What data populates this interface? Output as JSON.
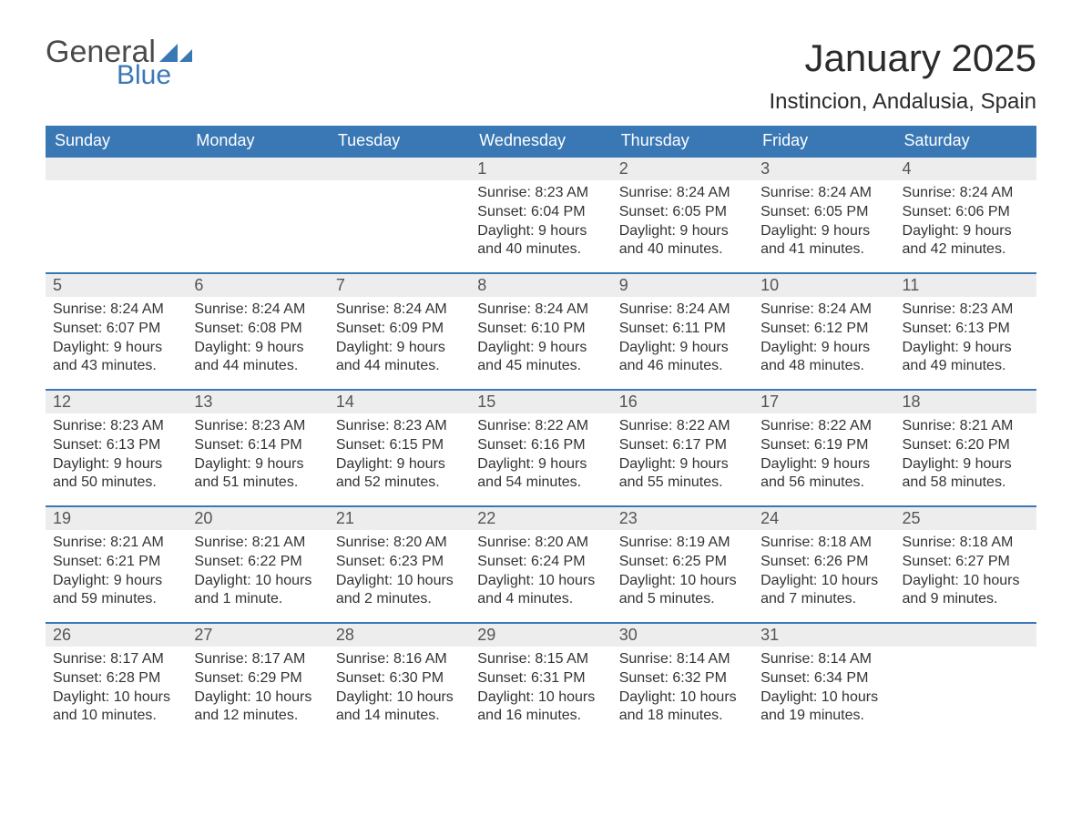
{
  "brand": {
    "part1": "General",
    "part2": "Blue",
    "logo_color": "#3a78b5",
    "text_color": "#4a4a4a"
  },
  "title": "January 2025",
  "location": "Instincion, Andalusia, Spain",
  "header_bg": "#3a78b5",
  "header_fg": "#ffffff",
  "daynum_bg": "#ededed",
  "daynum_border": "#3a78b5",
  "weekdays": [
    "Sunday",
    "Monday",
    "Tuesday",
    "Wednesday",
    "Thursday",
    "Friday",
    "Saturday"
  ],
  "weeks": [
    [
      null,
      null,
      null,
      {
        "n": "1",
        "sr": "8:23 AM",
        "ss": "6:04 PM",
        "dl": "9 hours and 40 minutes."
      },
      {
        "n": "2",
        "sr": "8:24 AM",
        "ss": "6:05 PM",
        "dl": "9 hours and 40 minutes."
      },
      {
        "n": "3",
        "sr": "8:24 AM",
        "ss": "6:05 PM",
        "dl": "9 hours and 41 minutes."
      },
      {
        "n": "4",
        "sr": "8:24 AM",
        "ss": "6:06 PM",
        "dl": "9 hours and 42 minutes."
      }
    ],
    [
      {
        "n": "5",
        "sr": "8:24 AM",
        "ss": "6:07 PM",
        "dl": "9 hours and 43 minutes."
      },
      {
        "n": "6",
        "sr": "8:24 AM",
        "ss": "6:08 PM",
        "dl": "9 hours and 44 minutes."
      },
      {
        "n": "7",
        "sr": "8:24 AM",
        "ss": "6:09 PM",
        "dl": "9 hours and 44 minutes."
      },
      {
        "n": "8",
        "sr": "8:24 AM",
        "ss": "6:10 PM",
        "dl": "9 hours and 45 minutes."
      },
      {
        "n": "9",
        "sr": "8:24 AM",
        "ss": "6:11 PM",
        "dl": "9 hours and 46 minutes."
      },
      {
        "n": "10",
        "sr": "8:24 AM",
        "ss": "6:12 PM",
        "dl": "9 hours and 48 minutes."
      },
      {
        "n": "11",
        "sr": "8:23 AM",
        "ss": "6:13 PM",
        "dl": "9 hours and 49 minutes."
      }
    ],
    [
      {
        "n": "12",
        "sr": "8:23 AM",
        "ss": "6:13 PM",
        "dl": "9 hours and 50 minutes."
      },
      {
        "n": "13",
        "sr": "8:23 AM",
        "ss": "6:14 PM",
        "dl": "9 hours and 51 minutes."
      },
      {
        "n": "14",
        "sr": "8:23 AM",
        "ss": "6:15 PM",
        "dl": "9 hours and 52 minutes."
      },
      {
        "n": "15",
        "sr": "8:22 AM",
        "ss": "6:16 PM",
        "dl": "9 hours and 54 minutes."
      },
      {
        "n": "16",
        "sr": "8:22 AM",
        "ss": "6:17 PM",
        "dl": "9 hours and 55 minutes."
      },
      {
        "n": "17",
        "sr": "8:22 AM",
        "ss": "6:19 PM",
        "dl": "9 hours and 56 minutes."
      },
      {
        "n": "18",
        "sr": "8:21 AM",
        "ss": "6:20 PM",
        "dl": "9 hours and 58 minutes."
      }
    ],
    [
      {
        "n": "19",
        "sr": "8:21 AM",
        "ss": "6:21 PM",
        "dl": "9 hours and 59 minutes."
      },
      {
        "n": "20",
        "sr": "8:21 AM",
        "ss": "6:22 PM",
        "dl": "10 hours and 1 minute."
      },
      {
        "n": "21",
        "sr": "8:20 AM",
        "ss": "6:23 PM",
        "dl": "10 hours and 2 minutes."
      },
      {
        "n": "22",
        "sr": "8:20 AM",
        "ss": "6:24 PM",
        "dl": "10 hours and 4 minutes."
      },
      {
        "n": "23",
        "sr": "8:19 AM",
        "ss": "6:25 PM",
        "dl": "10 hours and 5 minutes."
      },
      {
        "n": "24",
        "sr": "8:18 AM",
        "ss": "6:26 PM",
        "dl": "10 hours and 7 minutes."
      },
      {
        "n": "25",
        "sr": "8:18 AM",
        "ss": "6:27 PM",
        "dl": "10 hours and 9 minutes."
      }
    ],
    [
      {
        "n": "26",
        "sr": "8:17 AM",
        "ss": "6:28 PM",
        "dl": "10 hours and 10 minutes."
      },
      {
        "n": "27",
        "sr": "8:17 AM",
        "ss": "6:29 PM",
        "dl": "10 hours and 12 minutes."
      },
      {
        "n": "28",
        "sr": "8:16 AM",
        "ss": "6:30 PM",
        "dl": "10 hours and 14 minutes."
      },
      {
        "n": "29",
        "sr": "8:15 AM",
        "ss": "6:31 PM",
        "dl": "10 hours and 16 minutes."
      },
      {
        "n": "30",
        "sr": "8:14 AM",
        "ss": "6:32 PM",
        "dl": "10 hours and 18 minutes."
      },
      {
        "n": "31",
        "sr": "8:14 AM",
        "ss": "6:34 PM",
        "dl": "10 hours and 19 minutes."
      },
      null
    ]
  ],
  "labels": {
    "sunrise": "Sunrise: ",
    "sunset": "Sunset: ",
    "daylight": "Daylight: "
  }
}
